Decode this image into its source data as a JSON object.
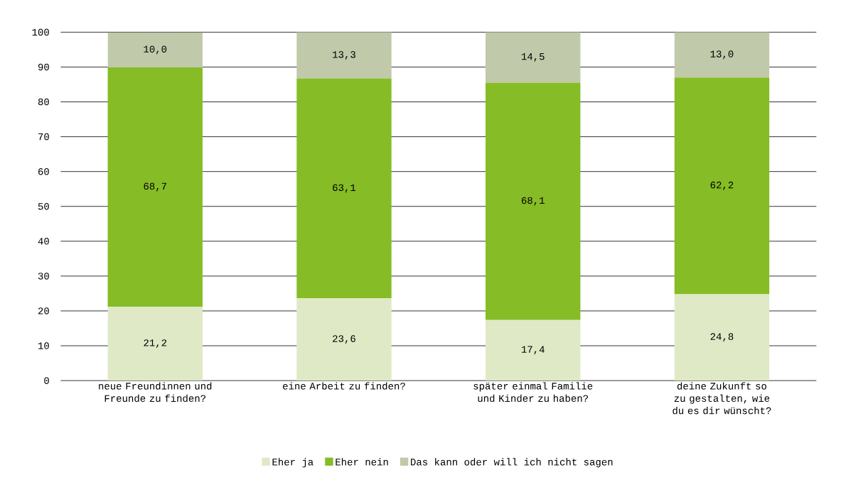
{
  "chart_data": {
    "type": "bar",
    "stacked": true,
    "categories": [
      "neue Freundinnen und Freunde zu finden?",
      "eine Arbeit zu finden?",
      "später einmal Familie und Kinder zu haben?",
      "deine Zukunft so zu gestalten, wie du es dir wünscht?"
    ],
    "series": [
      {
        "name": "Eher ja",
        "color": "#dfe9c6",
        "values": [
          21.2,
          23.6,
          17.4,
          24.8
        ],
        "value_labels": [
          "21,2",
          "23,6",
          "17,4",
          "24,8"
        ]
      },
      {
        "name": "Eher nein",
        "color": "#86bc25",
        "values": [
          68.7,
          63.1,
          68.1,
          62.2
        ],
        "value_labels": [
          "68,7",
          "63,1",
          "68,1",
          "62,2"
        ]
      },
      {
        "name": "Das kann oder will ich nicht sagen",
        "color": "#c0c9a9",
        "values": [
          10.0,
          13.3,
          14.5,
          13.0
        ],
        "value_labels": [
          "10,0",
          "13,3",
          "14,5",
          "13,0"
        ]
      }
    ],
    "ylim": [
      0,
      100
    ],
    "yticks": [
      0,
      10,
      20,
      30,
      40,
      50,
      60,
      70,
      80,
      90,
      100
    ],
    "grid": "y",
    "legend": "bottom"
  }
}
